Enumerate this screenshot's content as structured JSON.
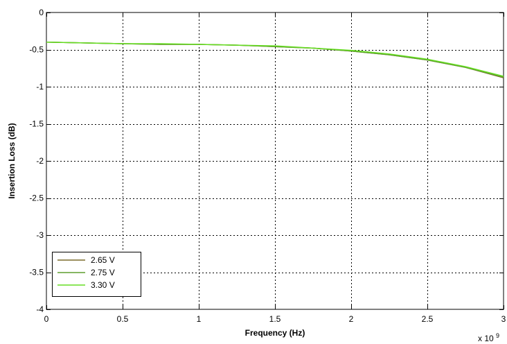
{
  "chart_data": {
    "type": "line",
    "xlabel": "Frequency (Hz)",
    "ylabel": "Insertion Loss (dB)",
    "x_multiplier_label": "x 10",
    "x_multiplier_exponent": "9",
    "xlim": [
      0,
      3
    ],
    "ylim": [
      -4,
      0
    ],
    "xticks": [
      0,
      0.5,
      1,
      1.5,
      2,
      2.5,
      3
    ],
    "xtick_labels": [
      "0",
      "0.5",
      "1",
      "1.5",
      "2",
      "2.5",
      "3"
    ],
    "yticks": [
      0,
      -0.5,
      -1,
      -1.5,
      -2,
      -2.5,
      -3,
      -3.5,
      -4
    ],
    "ytick_labels": [
      "0",
      "-0.5",
      "-1",
      "-1.5",
      "-2",
      "-2.5",
      "-3",
      "-3.5",
      "-4"
    ],
    "grid": true,
    "legend_position": "bottom-left",
    "series": [
      {
        "name": "2.65 V",
        "color": "#7a6a2a",
        "x": [
          0,
          0.25,
          0.5,
          0.75,
          1.0,
          1.25,
          1.5,
          1.75,
          2.0,
          2.25,
          2.5,
          2.75,
          3.0
        ],
        "y": [
          -0.4,
          -0.41,
          -0.42,
          -0.43,
          -0.43,
          -0.44,
          -0.46,
          -0.48,
          -0.52,
          -0.57,
          -0.64,
          -0.74,
          -0.88
        ]
      },
      {
        "name": "2.75 V",
        "color": "#5f9e2e",
        "x": [
          0,
          0.25,
          0.5,
          0.75,
          1.0,
          1.25,
          1.5,
          1.75,
          2.0,
          2.25,
          2.5,
          2.75,
          3.0
        ],
        "y": [
          -0.4,
          -0.41,
          -0.42,
          -0.43,
          -0.43,
          -0.44,
          -0.46,
          -0.48,
          -0.52,
          -0.57,
          -0.64,
          -0.74,
          -0.87
        ]
      },
      {
        "name": "3.30 V",
        "color": "#66dd22",
        "x": [
          0,
          0.25,
          0.5,
          0.75,
          1.0,
          1.25,
          1.5,
          1.75,
          2.0,
          2.25,
          2.5,
          2.75,
          3.0
        ],
        "y": [
          -0.4,
          -0.41,
          -0.42,
          -0.42,
          -0.43,
          -0.44,
          -0.45,
          -0.48,
          -0.51,
          -0.56,
          -0.63,
          -0.73,
          -0.86
        ]
      }
    ]
  }
}
